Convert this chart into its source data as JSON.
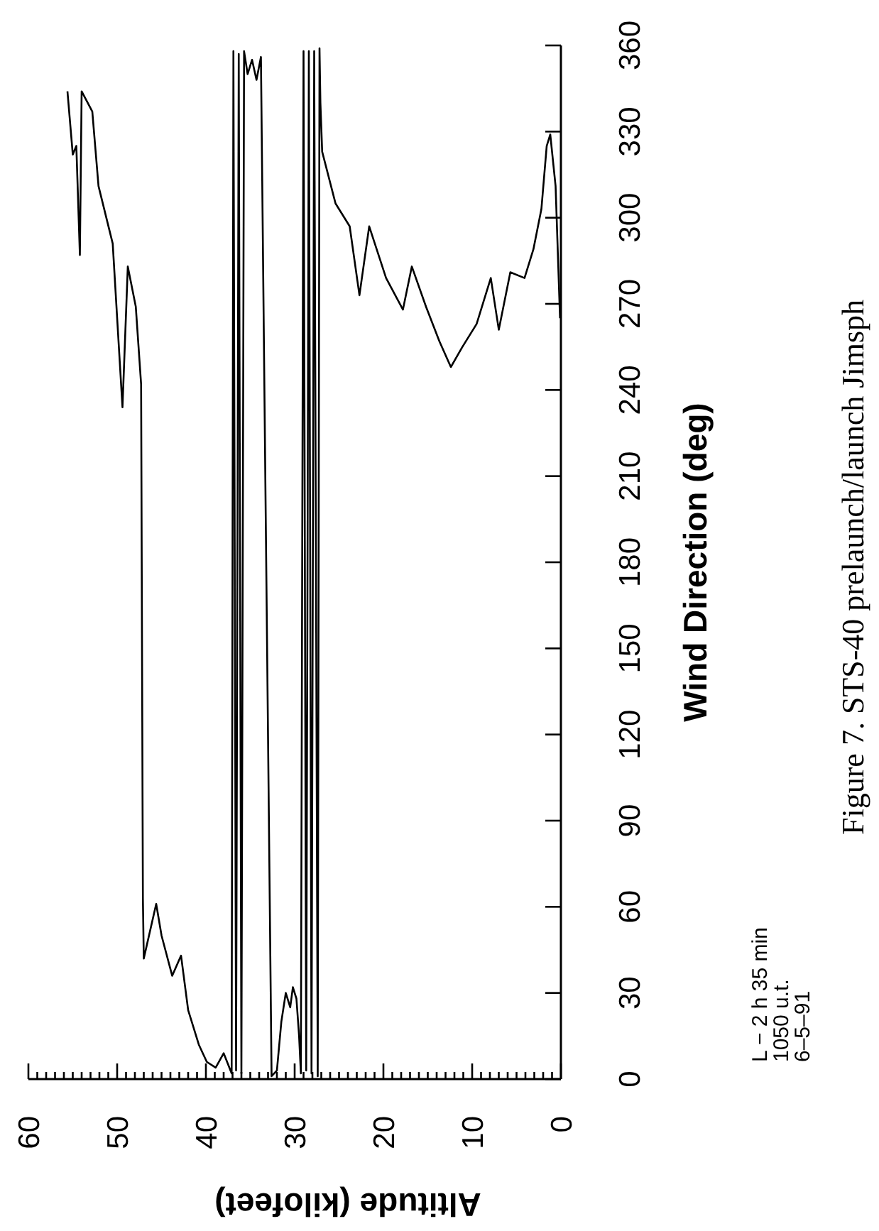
{
  "chart_data": {
    "type": "line",
    "title": "Figure 7. STS-40 prelaunch/launch Jimsph",
    "xlabel": "Altitude (kilofeet)",
    "ylabel": "Wind Direction (deg)",
    "annotations": [
      "L − 2 h 35 min",
      "1050 u.t.",
      "6–5–91"
    ],
    "ylim": [
      0,
      360
    ],
    "yticks": [
      0,
      30,
      60,
      90,
      120,
      150,
      180,
      210,
      240,
      270,
      300,
      330,
      360
    ],
    "xlim": [
      60,
      0
    ],
    "xticks": [
      60,
      {
        "value": 59,
        "label": null
      },
      {
        "value": 58,
        "label": null
      },
      {
        "value": 57,
        "label": null
      },
      {
        "value": 56,
        "label": null
      },
      {
        "value": 55,
        "label": null
      },
      {
        "value": 54,
        "label": null
      },
      {
        "value": 53,
        "label": null
      },
      {
        "value": 52,
        "label": null
      },
      {
        "value": 51,
        "label": null
      },
      50,
      {
        "value": 49,
        "label": null
      },
      {
        "value": 48,
        "label": null
      },
      {
        "value": 47,
        "label": null
      },
      {
        "value": 46,
        "label": null
      },
      {
        "value": 45,
        "label": null
      },
      {
        "value": 44,
        "label": null
      },
      {
        "value": 43,
        "label": null
      },
      {
        "value": 42,
        "label": null
      },
      {
        "value": 41,
        "label": null
      },
      40,
      {
        "value": 39,
        "label": null
      },
      {
        "value": 38,
        "label": null
      },
      {
        "value": 37,
        "label": null
      },
      {
        "value": 36,
        "label": null
      },
      {
        "value": 35,
        "label": null
      },
      {
        "value": 34,
        "label": null
      },
      {
        "value": 33,
        "label": null
      },
      {
        "value": 32,
        "label": null
      },
      {
        "value": 31,
        "label": null
      },
      30,
      {
        "value": 29,
        "label": null
      },
      {
        "value": 28,
        "label": null
      },
      {
        "value": 27,
        "label": null
      },
      {
        "value": 26,
        "label": null
      },
      {
        "value": 25,
        "label": null
      },
      {
        "value": 24,
        "label": null
      },
      {
        "value": 23,
        "label": null
      },
      {
        "value": 22,
        "label": null
      },
      {
        "value": 21,
        "label": null
      },
      20,
      {
        "value": 19,
        "label": null
      },
      {
        "value": 18,
        "label": null
      },
      {
        "value": 17,
        "label": null
      },
      {
        "value": 16,
        "label": null
      },
      {
        "value": 15,
        "label": null
      },
      {
        "value": 14,
        "label": null
      },
      {
        "value": 13,
        "label": null
      },
      {
        "value": 12,
        "label": null
      },
      {
        "value": 11,
        "label": null
      },
      10,
      {
        "value": 9,
        "label": null
      },
      {
        "value": 8,
        "label": null
      },
      {
        "value": 7,
        "label": null
      },
      {
        "value": 6,
        "label": null
      },
      {
        "value": 5,
        "label": null
      },
      {
        "value": 4,
        "label": null
      },
      {
        "value": 3,
        "label": null
      },
      {
        "value": 2,
        "label": null
      },
      {
        "value": 1,
        "label": null
      },
      0
    ],
    "series": [
      {
        "color": "#000000",
        "values": [
          344,
          322,
          325,
          287,
          344,
          337,
          311,
          291,
          265,
          234,
          283,
          269,
          242,
          63,
          42,
          61,
          50,
          36,
          43,
          24,
          12,
          6,
          4,
          9,
          2,
          358,
          3,
          357,
          2,
          358,
          350,
          355,
          348,
          356,
          1,
          3,
          20,
          30,
          25,
          32,
          28,
          15,
          2,
          358,
          3,
          358,
          2,
          358,
          1,
          359,
          340,
          323,
          305,
          297,
          273,
          297,
          279,
          268,
          283,
          269,
          257,
          248,
          255,
          263,
          279,
          261,
          281,
          279,
          289,
          303,
          325,
          329,
          311,
          265
        ],
        "x": [
          55.6,
          55.0,
          54.6,
          54.2,
          54.0,
          52.8,
          52.1,
          50.5,
          50.0,
          49.4,
          48.8,
          47.9,
          47.3,
          47.1,
          47.0,
          45.6,
          45.0,
          43.8,
          42.8,
          42.0,
          40.8,
          39.9,
          38.9,
          38.0,
          37.1,
          36.9,
          36.6,
          36.3,
          36.0,
          35.7,
          35.3,
          34.8,
          34.3,
          33.8,
          32.6,
          32.0,
          31.5,
          31.0,
          30.5,
          30.2,
          29.8,
          29.5,
          29.3,
          29.0,
          28.7,
          28.4,
          28.1,
          27.8,
          27.4,
          27.2,
          27.1,
          26.9,
          25.4,
          23.8,
          22.7,
          21.6,
          19.7,
          17.8,
          16.8,
          15.2,
          13.7,
          12.4,
          11.1,
          9.5,
          7.9,
          7.0,
          5.7,
          4.1,
          3.1,
          2.2,
          1.6,
          1.2,
          0.6,
          0.1
        ]
      }
    ]
  }
}
